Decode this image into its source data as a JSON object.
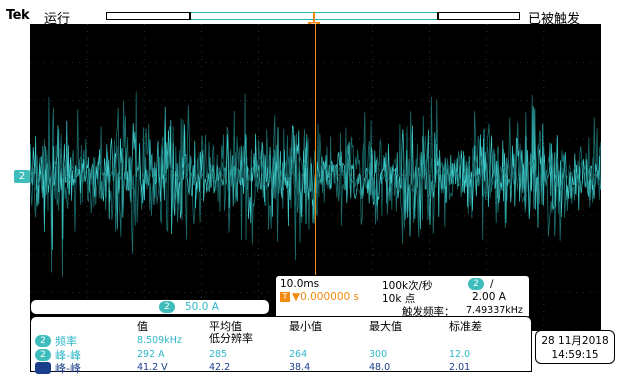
{
  "header": {
    "brand": "Tek",
    "run_state": "运行",
    "trigger_state": "已被触发"
  },
  "trigger_marker": "T",
  "channel_marker": "2",
  "info": {
    "timebase": "10.0ms",
    "sample_rate": "100k次/秒",
    "record_length": "10k 点",
    "trigger_delay": "▼0.000000 s",
    "trigger_channel": "2",
    "trigger_slope": "∕",
    "trigger_level": "2.00 A",
    "trigger_freq_label": "触发频率：",
    "trigger_freq_value": "7.49337kHz"
  },
  "scale": {
    "channel": "2",
    "value": "50.0 A"
  },
  "measurements": {
    "headers": [
      "值",
      "平均值",
      "最小值",
      "最大值",
      "标准差"
    ],
    "subheader": "低分辨率",
    "rows": [
      {
        "ch": "2",
        "name": "频率",
        "values": [
          "8.509kHz",
          "",
          "",
          "",
          ""
        ]
      },
      {
        "ch": "2",
        "name": "峰-峰",
        "values": [
          "292 A",
          "285",
          "264",
          "300",
          "12.0"
        ]
      },
      {
        "ch": "1",
        "name": "峰-峰",
        "values": [
          "41.2 V",
          "42.2",
          "38.4",
          "48.0",
          "2.01"
        ]
      }
    ]
  },
  "datetime": {
    "date": "28 11月2018",
    "time": "14:59:15"
  },
  "colors": {
    "trace_light": "#3fd0d0",
    "trace_dark": "#1a6e6e",
    "trigger": "#f08a10",
    "screen": "#000000"
  }
}
